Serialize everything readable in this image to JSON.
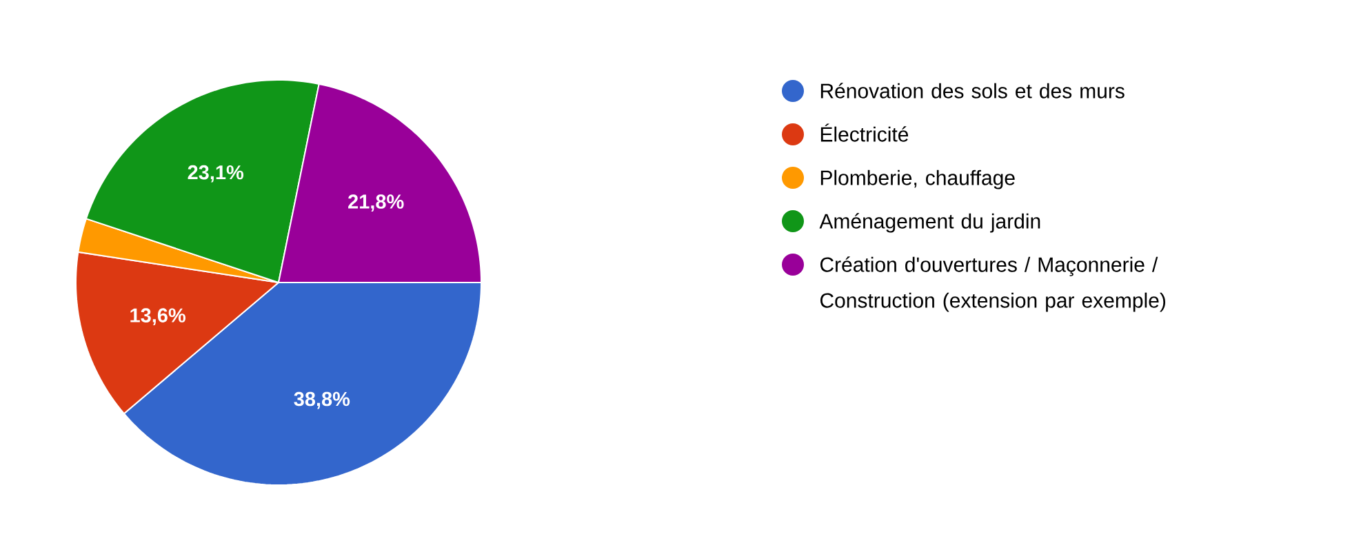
{
  "chart_data": {
    "type": "pie",
    "categories": [
      "Rénovation des sols et des murs",
      "Électricité",
      "Plomberie, chauffage",
      "Aménagement du jardin",
      "Création d'ouvertures / Maçonnerie / Construction (extension par exemple)"
    ],
    "values": [
      38.8,
      13.6,
      2.7,
      23.1,
      21.8
    ],
    "colors": [
      "#3366cc",
      "#dc3912",
      "#ff9900",
      "#109618",
      "#990099"
    ],
    "value_labels": [
      "38,8%",
      "13,6%",
      null,
      "23,1%",
      "21,8%"
    ],
    "legend": "right"
  }
}
